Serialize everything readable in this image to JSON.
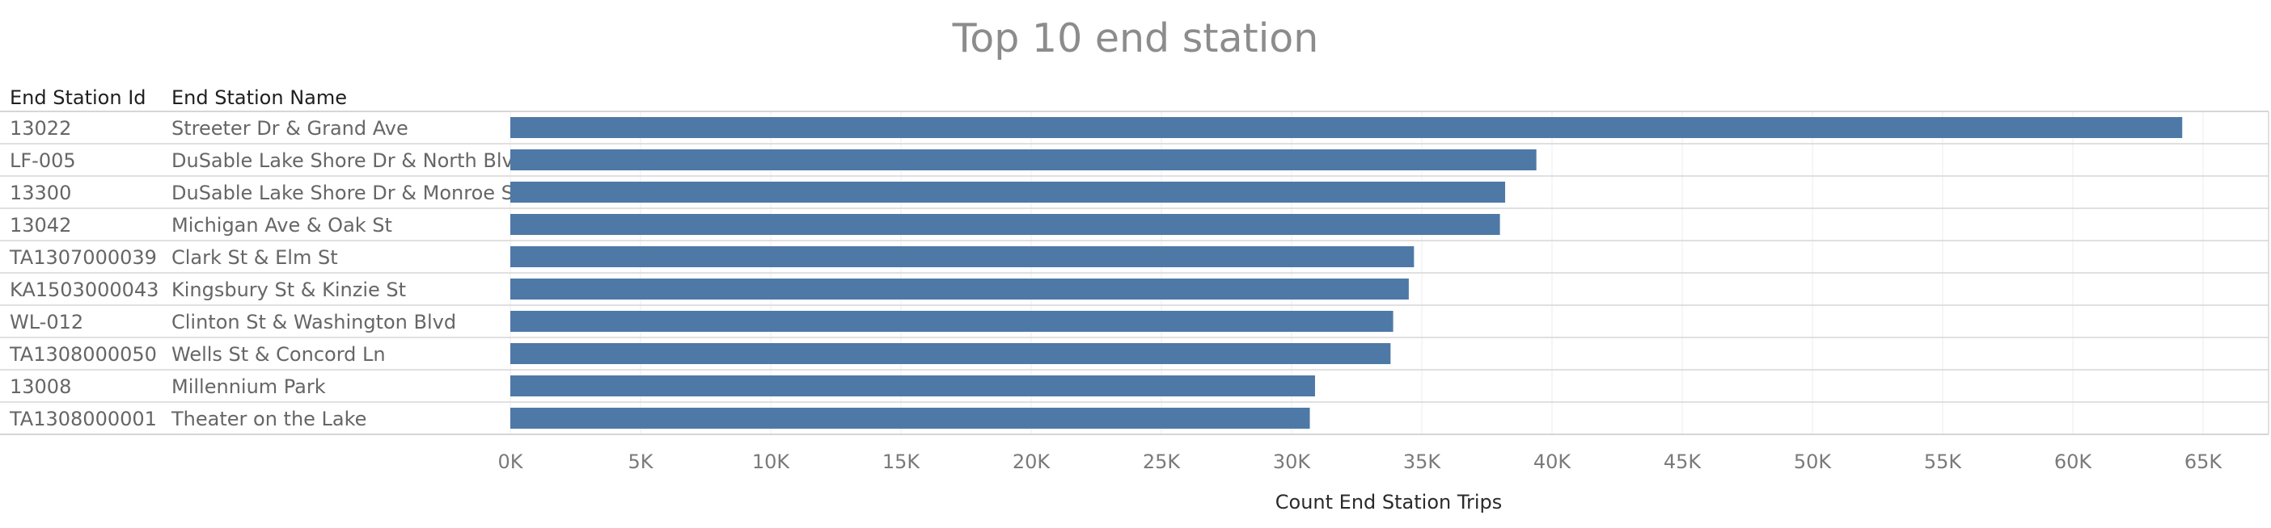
{
  "chart_data": {
    "type": "bar",
    "orientation": "horizontal",
    "title": "Top 10 end station",
    "columns": [
      "End Station Id",
      "End Station Name"
    ],
    "rows": [
      {
        "id": "13022",
        "name": "Streeter Dr & Grand Ave",
        "value": 64200
      },
      {
        "id": "LF-005",
        "name": "DuSable Lake Shore Dr & North Blvd",
        "value": 39400
      },
      {
        "id": "13300",
        "name": "DuSable Lake Shore Dr & Monroe St",
        "value": 38200
      },
      {
        "id": "13042",
        "name": "Michigan Ave & Oak St",
        "value": 38000
      },
      {
        "id": "TA1307000039",
        "name": "Clark St & Elm St",
        "value": 34700
      },
      {
        "id": "KA1503000043",
        "name": "Kingsbury St & Kinzie St",
        "value": 34500
      },
      {
        "id": "WL-012",
        "name": "Clinton St & Washington Blvd",
        "value": 33900
      },
      {
        "id": "TA1308000050",
        "name": "Wells St & Concord Ln",
        "value": 33800
      },
      {
        "id": "13008",
        "name": "Millennium Park",
        "value": 30900
      },
      {
        "id": "TA1308000001",
        "name": "Theater on the Lake",
        "value": 30700
      }
    ],
    "xlabel": "Count End Station Trips",
    "xlim": [
      0,
      67500
    ],
    "xticks": [
      0,
      5000,
      10000,
      15000,
      20000,
      25000,
      30000,
      35000,
      40000,
      45000,
      50000,
      55000,
      60000,
      65000
    ],
    "xtick_labels": [
      "0K",
      "5K",
      "10K",
      "15K",
      "20K",
      "25K",
      "30K",
      "35K",
      "40K",
      "45K",
      "50K",
      "55K",
      "60K",
      "65K"
    ],
    "bar_color": "#4e79a7",
    "grid": true
  }
}
